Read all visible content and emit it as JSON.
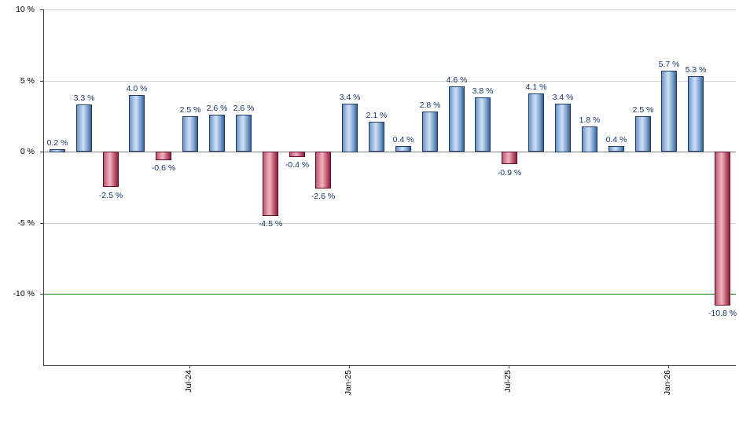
{
  "chart_data": {
    "type": "bar",
    "title": "",
    "values": [
      0.2,
      3.3,
      -2.5,
      4.0,
      -0.6,
      2.5,
      2.6,
      2.6,
      -4.5,
      -0.4,
      -2.6,
      3.4,
      2.1,
      0.4,
      2.8,
      4.6,
      3.8,
      -0.9,
      4.1,
      3.4,
      1.8,
      0.4,
      2.5,
      5.7,
      5.3,
      -10.8
    ],
    "label_suffix": " %",
    "bar_value_labels": [
      "0.2 %",
      "3.3 %",
      "-2.5 %",
      "4.0 %",
      "-0.6 %",
      "2.5 %",
      "2.6 %",
      "2.6 %",
      "-4.5 %",
      "-0.4 %",
      "-2.6 %",
      "3.4 %",
      "2.1 %",
      "0.4 %",
      "2.8 %",
      "4.6 %",
      "3.8 %",
      "-0.9 %",
      "4.1 %",
      "3.4 %",
      "1.8 %",
      "0.4 %",
      "2.5 %",
      "5.7 %",
      "5.3 %",
      "-10.8 %"
    ],
    "y_ticks": [
      {
        "label": "10 %",
        "value": 10
      },
      {
        "label": "5 %",
        "value": 5
      },
      {
        "label": "0 %",
        "value": 0
      },
      {
        "label": "-5 %",
        "value": -5
      },
      {
        "label": "-10 %",
        "value": -10
      }
    ],
    "x_ticks": [
      {
        "label": "Jul-24",
        "bar_index": 5
      },
      {
        "label": "Jan-25",
        "bar_index": 11
      },
      {
        "label": "Jul-25",
        "bar_index": 17
      },
      {
        "label": "Jan-26",
        "bar_index": 23
      }
    ],
    "ylim": [
      -15,
      10
    ],
    "grid": true,
    "legend": "none",
    "threshold_line": {
      "value": -10,
      "color": "#008000"
    },
    "colors": {
      "positive_fill": "#7da7d9",
      "positive_border": "#1c3c66",
      "negative_fill": "#c4596f",
      "negative_border": "#5e0f28",
      "value_label_text": "#16366e",
      "gridline": "#d6d6d6",
      "zero_line": "#7f7f7f",
      "axis": "#404040"
    }
  }
}
